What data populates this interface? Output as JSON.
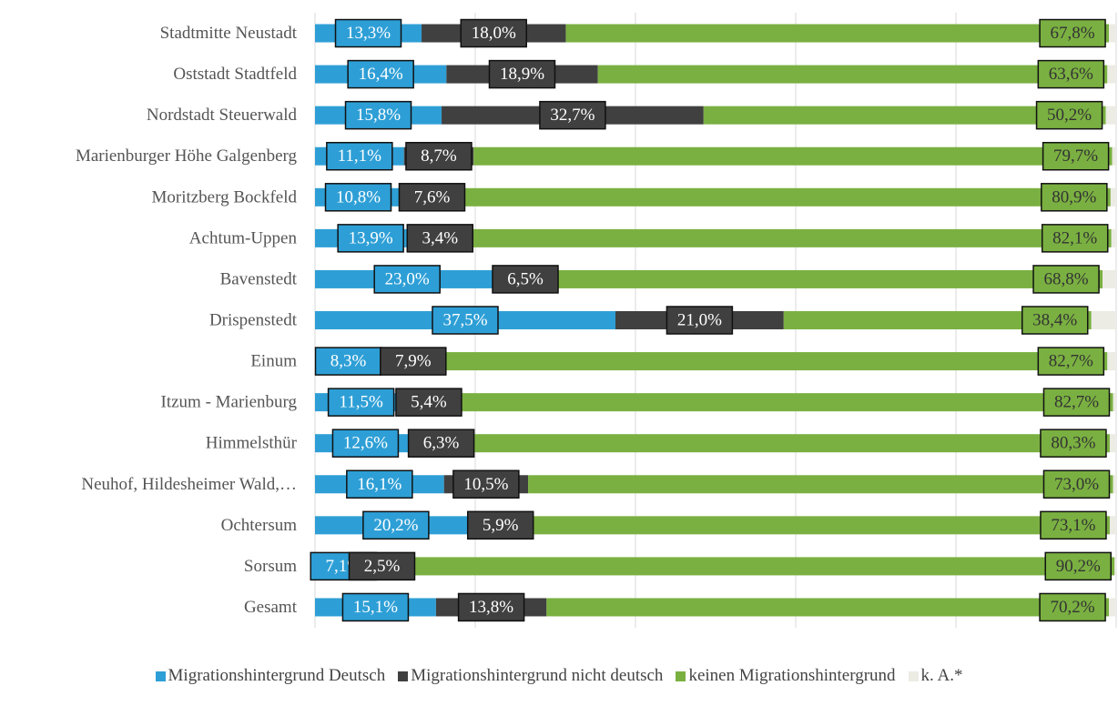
{
  "chart_data": {
    "type": "stacked-barh",
    "categories": [
      "Stadtmitte Neustadt",
      "Oststadt Stadtfeld",
      "Nordstadt Steuerwald",
      "Marienburger Höhe Galgenberg",
      "Moritzberg Bockfeld",
      "Achtum-Uppen",
      "Bavenstedt",
      "Drispenstedt",
      "Einum",
      "Itzum - Marienburg",
      "Himmelsthür",
      "Neuhof, Hildesheimer Wald,…",
      "Ochtersum",
      "Sorsum",
      "Gesamt"
    ],
    "series": [
      {
        "name": "Migrationshintergrund Deutsch",
        "color": "#2e9fd6",
        "values": [
          13.3,
          16.4,
          15.8,
          11.1,
          10.8,
          13.9,
          23.0,
          37.5,
          8.3,
          11.5,
          12.6,
          16.1,
          20.2,
          7.1,
          15.1
        ],
        "value_labels": [
          "13,3%",
          "16,4%",
          "15,8%",
          "11,1%",
          "10,8%",
          "13,9%",
          "23,0%",
          "37,5%",
          "8,3%",
          "11,5%",
          "12,6%",
          "16,1%",
          "20,2%",
          "7,1%",
          "15,1%"
        ]
      },
      {
        "name": "Migrationshintergrund nicht deutsch",
        "color": "#404040",
        "values": [
          18.0,
          18.9,
          32.7,
          8.7,
          7.6,
          3.4,
          6.5,
          21.0,
          7.9,
          5.4,
          6.3,
          10.5,
          5.9,
          2.5,
          13.8
        ],
        "value_labels": [
          "18,0%",
          "18,9%",
          "32,7%",
          "8,7%",
          "7,6%",
          "3,4%",
          "6,5%",
          "21,0%",
          "7,9%",
          "5,4%",
          "6,3%",
          "10,5%",
          "5,9%",
          "2,5%",
          "13,8%"
        ]
      },
      {
        "name": "keinen Migrationshintergrund",
        "color": "#7ab041",
        "values": [
          67.8,
          63.6,
          50.2,
          79.7,
          80.9,
          82.1,
          68.8,
          38.4,
          82.7,
          82.7,
          80.3,
          73.0,
          73.1,
          90.2,
          70.2
        ],
        "value_labels": [
          "67,8%",
          "63,6%",
          "50,2%",
          "79,7%",
          "80,9%",
          "82,1%",
          "68,8%",
          "38,4%",
          "82,7%",
          "82,7%",
          "80,3%",
          "73,0%",
          "73,1%",
          "90,2%",
          "70,2%"
        ]
      },
      {
        "name": "k. A.*",
        "color": "#ecebe4",
        "values": [
          0.9,
          1.1,
          1.3,
          0.5,
          0.7,
          0.6,
          1.7,
          3.1,
          1.1,
          0.4,
          0.8,
          0.4,
          0.8,
          0.2,
          0.9
        ]
      }
    ],
    "xlim": [
      0,
      100
    ],
    "xticks": [
      0,
      20,
      40,
      60,
      80,
      100
    ],
    "grid": true
  }
}
